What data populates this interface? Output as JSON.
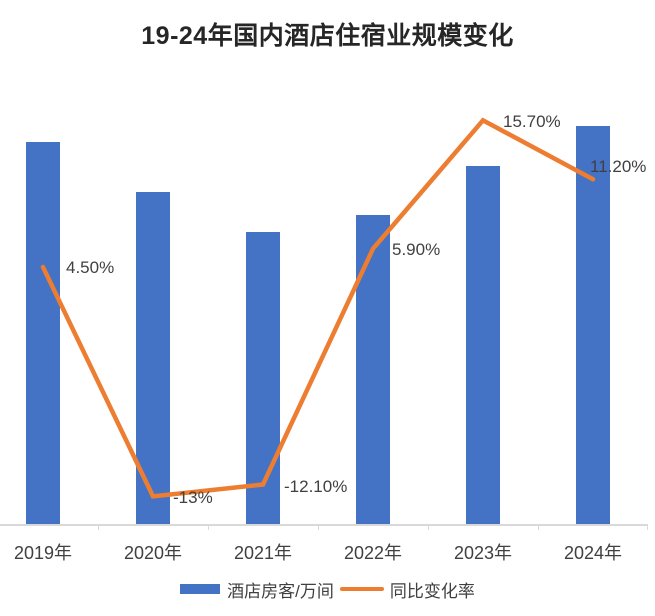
{
  "colors": {
    "bar": "#4472C4",
    "line": "#ED7D31",
    "axis": "#D9D9D9",
    "label_text": "#404040",
    "title_text": "#262626",
    "background": "#FFFFFF"
  },
  "chart_data": {
    "type": "bar",
    "combo": "bar + line",
    "title": "19-24年国内酒店住宿业规模变化",
    "categories": [
      "2019年",
      "2020年",
      "2021年",
      "2022年",
      "2023年",
      "2024年"
    ],
    "series": [
      {
        "name": "酒店房客/万间",
        "type": "bar",
        "color": "#4472C4",
        "values": [
          100,
          87,
          76.5,
          81,
          93.7,
          104.2
        ],
        "values_note": "no value axis or bar labels shown; values are relative index estimated from bar heights (2019 = 100), consistent with the labeled year-over-year rates"
      },
      {
        "name": "同比变化率",
        "type": "line",
        "color": "#ED7D31",
        "values": [
          4.5,
          -13,
          -12.1,
          5.9,
          15.7,
          11.2
        ],
        "labels": [
          "4.50%",
          "-13%",
          "-12.10%",
          "5.90%",
          "15.70%",
          "11.20%"
        ]
      }
    ],
    "legend_position": "bottom",
    "grid": false,
    "value_axis_visible": false,
    "category_axis_visible": true
  }
}
